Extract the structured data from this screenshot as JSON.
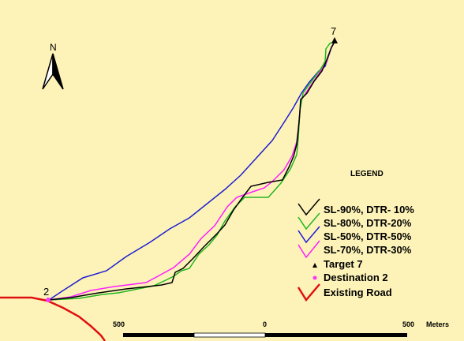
{
  "map": {
    "background": "#fdf3b8",
    "north_label": "N",
    "target_label": "7",
    "destination_label": "2"
  },
  "legend": {
    "title": "LEGEND",
    "items": [
      {
        "label": "SL-90%, DTR- 10%",
        "color": "#000000",
        "symbol": "route-line"
      },
      {
        "label": "SL-80%, DTR-20%",
        "color": "#22b522",
        "symbol": "route-line"
      },
      {
        "label": "SL-50%, DTR-50%",
        "color": "#1e1ed2",
        "symbol": "route-line"
      },
      {
        "label": "SL-70%, DTR-30%",
        "color": "#ff1eff",
        "symbol": "route-line"
      },
      {
        "label": "Target  7",
        "color": "#000000",
        "symbol": "triangle"
      },
      {
        "label": "Destination 2",
        "color": "#ff33ff",
        "symbol": "dot"
      },
      {
        "label": "Existing Road",
        "color": "#e01010",
        "symbol": "route-line"
      }
    ]
  },
  "scale_bar": {
    "left_label": "500",
    "middle_label": "0",
    "right_label": "500",
    "unit": "Meters"
  }
}
